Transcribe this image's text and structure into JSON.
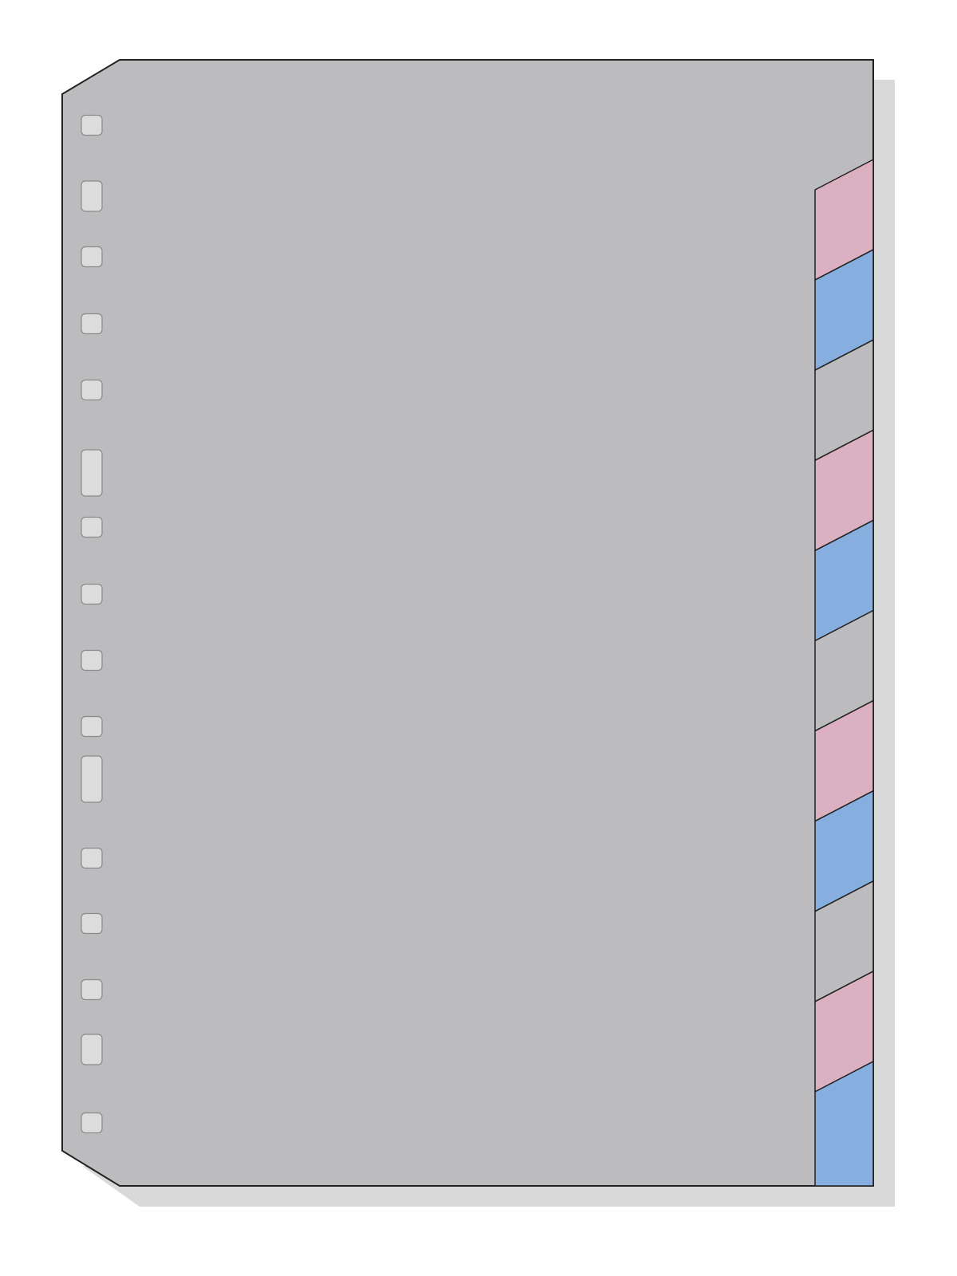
{
  "colors": {
    "background": "#ffffff",
    "sheet": "#bcbcbe",
    "shadow": "#d9d9d9",
    "outline": "#222222",
    "hole_fill": "#dcdcdc",
    "hole_stroke": "#8a8a8a",
    "tab_pink": "#dbb1c1",
    "tab_blue": "#86aede",
    "tab_gray": "#bcbcbe"
  },
  "tabs": [
    "pink",
    "blue",
    "gray",
    "pink",
    "blue",
    "gray",
    "pink",
    "blue",
    "gray",
    "pink",
    "blue"
  ],
  "holes": [
    "small",
    "medium",
    "small",
    "small",
    "small",
    "tall",
    "small",
    "small",
    "small",
    "small",
    "tall",
    "small",
    "small",
    "small",
    "medium",
    "small"
  ]
}
